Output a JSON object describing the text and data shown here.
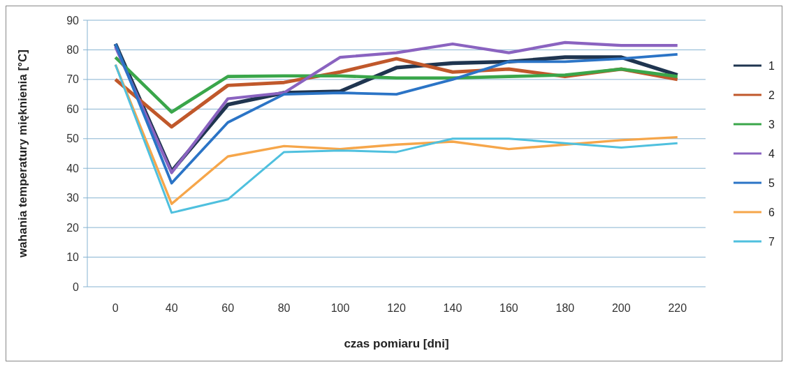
{
  "chart_data": {
    "type": "line",
    "xlabel": "czas pomiaru [dni]",
    "ylabel": "wahania temperatury mięknienia [°C]",
    "categories": [
      "0",
      "40",
      "60",
      "80",
      "100",
      "120",
      "140",
      "160",
      "180",
      "200",
      "220"
    ],
    "ylim": [
      0,
      90
    ],
    "yticks": [
      0,
      10,
      20,
      30,
      40,
      50,
      60,
      70,
      80,
      90
    ],
    "grid": "y",
    "legend": "right",
    "marker": "none",
    "line_style": "solid",
    "series": [
      {
        "name": "1",
        "color": "#1f3550",
        "values": [
          82,
          39,
          61.5,
          65.5,
          66,
          74,
          75.5,
          76,
          77.5,
          77.5,
          71.5
        ]
      },
      {
        "name": "2",
        "color": "#c0582b",
        "values": [
          70,
          54,
          68,
          69,
          72.5,
          77,
          72.5,
          73.5,
          71,
          73.5,
          70
        ]
      },
      {
        "name": "3",
        "color": "#3aa64a",
        "values": [
          77.5,
          59,
          71,
          71.2,
          71.2,
          70.5,
          70.5,
          71,
          71.5,
          73.5,
          71
        ]
      },
      {
        "name": "4",
        "color": "#8a63c0",
        "values": [
          81,
          38.5,
          63.5,
          65.5,
          77.5,
          79,
          82,
          79,
          82.5,
          81.5,
          81.5
        ]
      },
      {
        "name": "5",
        "color": "#2b74c6",
        "values": [
          82,
          35,
          55.5,
          65,
          65.5,
          65,
          70,
          76,
          76,
          77,
          78.5
        ]
      },
      {
        "name": "6",
        "color": "#f6a64a",
        "values": [
          75,
          28,
          44,
          47.5,
          46.5,
          48,
          49,
          46.5,
          48,
          49.5,
          50.5
        ]
      },
      {
        "name": "7",
        "color": "#4fc0de",
        "values": [
          75,
          25,
          29.5,
          45.5,
          46,
          45.5,
          50,
          50,
          48.5,
          47,
          48.5
        ]
      }
    ]
  }
}
